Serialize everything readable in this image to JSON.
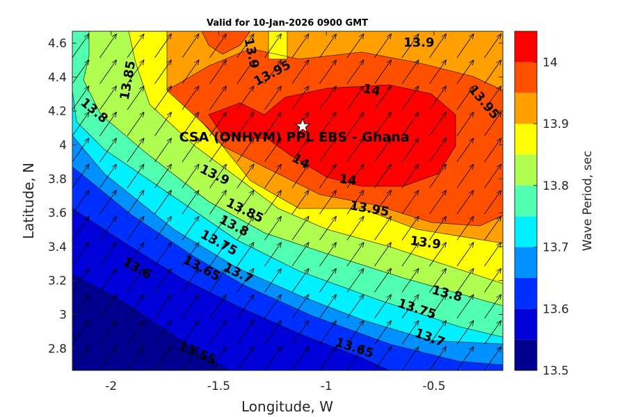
{
  "chart_data": {
    "type": "filled-contour",
    "title": "Valid for 10-Jan-2026 0900 GMT",
    "xlabel": "Longitude, W",
    "ylabel": "Latitude, N",
    "xlim": [
      -2.18,
      -0.18
    ],
    "ylim": [
      2.67,
      4.67
    ],
    "x_ticks": [
      -2,
      -1.5,
      -1,
      -0.5
    ],
    "x_tick_labels": [
      "-2",
      "-1.5",
      "-1",
      "-0.5"
    ],
    "y_ticks": [
      2.8,
      3,
      3.2,
      3.4,
      3.6,
      3.8,
      4,
      4.2,
      4.4,
      4.6
    ],
    "y_tick_labels": [
      "2.8",
      "3",
      "3.2",
      "3.4",
      "3.6",
      "3.8",
      "4",
      "4.2",
      "4.4",
      "4.6"
    ],
    "colorbar": {
      "label": "Wave Period, sec",
      "range": [
        13.5,
        14.05
      ],
      "ticks": [
        "13.5",
        "13.6",
        "13.7",
        "13.8",
        "13.9",
        "14"
      ],
      "tick_values": [
        13.5,
        13.6,
        13.7,
        13.8,
        13.9,
        14
      ],
      "colors": [
        "#00008f",
        "#0000d8",
        "#0030ff",
        "#0090ff",
        "#00f0ff",
        "#50ffaf",
        "#b0ff50",
        "#ffff00",
        "#ffa000",
        "#ff5000",
        "#ff0000"
      ]
    },
    "contour_levels": [
      13.55,
      13.6,
      13.65,
      13.7,
      13.75,
      13.8,
      13.85,
      13.9,
      13.95,
      14
    ],
    "contour_labels": [
      {
        "text": "13.55",
        "lon": -1.6,
        "lat": 2.77,
        "angle": 24
      },
      {
        "text": "13.6",
        "lon": -1.88,
        "lat": 3.27,
        "angle": 30
      },
      {
        "text": "13.65",
        "lon": -1.58,
        "lat": 3.27,
        "angle": 28
      },
      {
        "text": "13.65",
        "lon": -0.87,
        "lat": 2.8,
        "angle": 18
      },
      {
        "text": "13.7",
        "lon": -1.41,
        "lat": 3.24,
        "angle": 26
      },
      {
        "text": "13.7",
        "lon": -0.52,
        "lat": 2.86,
        "angle": 20
      },
      {
        "text": "13.75",
        "lon": -1.5,
        "lat": 3.42,
        "angle": 28
      },
      {
        "text": "13.75",
        "lon": -0.58,
        "lat": 3.03,
        "angle": 18
      },
      {
        "text": "13.8",
        "lon": -1.43,
        "lat": 3.52,
        "angle": 28
      },
      {
        "text": "13.8",
        "lon": -2.08,
        "lat": 4.2,
        "angle": 40
      },
      {
        "text": "13.8",
        "lon": -0.44,
        "lat": 3.12,
        "angle": 15
      },
      {
        "text": "13.85",
        "lon": -1.38,
        "lat": 3.61,
        "angle": 26
      },
      {
        "text": "13.85",
        "lon": -1.92,
        "lat": 4.38,
        "angle": -80
      },
      {
        "text": "13.9",
        "lon": -1.52,
        "lat": 3.82,
        "angle": 26
      },
      {
        "text": "13.9",
        "lon": -0.54,
        "lat": 3.42,
        "angle": 8
      },
      {
        "text": "13.9",
        "lon": -1.35,
        "lat": 4.54,
        "angle": 78
      },
      {
        "text": "13.9",
        "lon": -0.57,
        "lat": 4.6,
        "angle": 0
      },
      {
        "text": "13.95",
        "lon": -1.25,
        "lat": 4.42,
        "angle": -28
      },
      {
        "text": "13.95",
        "lon": -0.8,
        "lat": 3.62,
        "angle": 10
      },
      {
        "text": "13.95",
        "lon": -0.27,
        "lat": 4.25,
        "angle": 50
      },
      {
        "text": "14",
        "lon": -1.12,
        "lat": 3.9,
        "angle": 30
      },
      {
        "text": "14",
        "lon": -0.9,
        "lat": 3.79,
        "angle": 8
      },
      {
        "text": "14",
        "lon": -0.79,
        "lat": 4.32,
        "angle": 12
      }
    ],
    "vector_field": "wave direction arrows toward north-east (~35 deg from north)",
    "site_marker": {
      "label": "CSA (ONHYM) PPL EBS  - Ghana",
      "lon": -1.11,
      "lat": 4.11,
      "symbol": "white star"
    }
  }
}
